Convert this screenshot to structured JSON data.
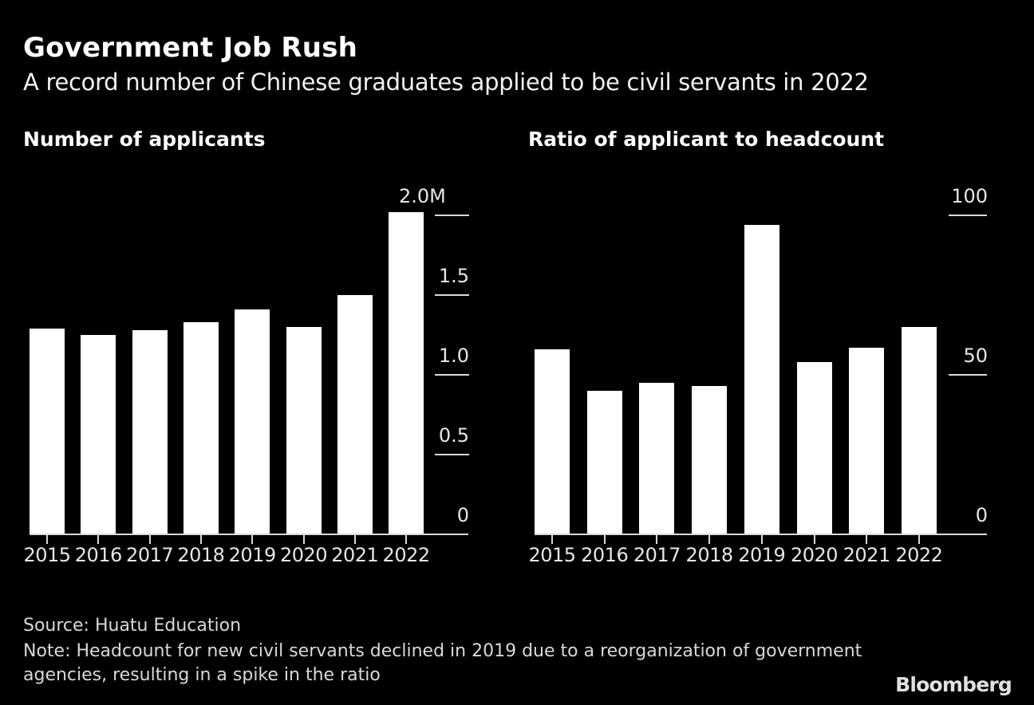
{
  "header": {
    "title": "Government Job Rush",
    "subtitle": "A record number of Chinese graduates applied to be civil servants in 2022"
  },
  "footer": {
    "source": "Source: Huatu Education",
    "note": "Note: Headcount for new civil servants declined in 2019 due to a reorganization of government agencies, resulting in a spike in the ratio",
    "logo": "Bloomberg"
  },
  "colors": {
    "background": "#000000",
    "bar": "#ffffff",
    "axis": "#d9d9d9"
  },
  "chart_data": [
    {
      "type": "bar",
      "title": "Number of applicants",
      "xlabel": "",
      "ylabel": "",
      "categories": [
        "2015",
        "2016",
        "2017",
        "2018",
        "2019",
        "2020",
        "2021",
        "2022"
      ],
      "values": [
        1.29,
        1.25,
        1.28,
        1.33,
        1.41,
        1.3,
        1.5,
        2.02
      ],
      "unit": "M",
      "ylim": [
        0,
        2.0
      ],
      "yticks": [
        0,
        0.5,
        1.0,
        1.5,
        2.0
      ],
      "ytick_labels": [
        "0",
        "0.5",
        "1.0",
        "1.5",
        "2.0M"
      ],
      "grid": true,
      "axis_position": "right",
      "legend": null
    },
    {
      "type": "bar",
      "title": "Ratio of applicant to headcount",
      "xlabel": "",
      "ylabel": "",
      "categories": [
        "2015",
        "2016",
        "2017",
        "2018",
        "2019",
        "2020",
        "2021",
        "2022"
      ],
      "values": [
        58,
        45,
        47.5,
        46.5,
        97,
        54,
        58.5,
        65
      ],
      "ylim": [
        0,
        100
      ],
      "yticks": [
        0,
        50,
        100
      ],
      "ytick_labels": [
        "0",
        "50",
        "100"
      ],
      "grid": true,
      "axis_position": "right",
      "legend": null
    }
  ]
}
